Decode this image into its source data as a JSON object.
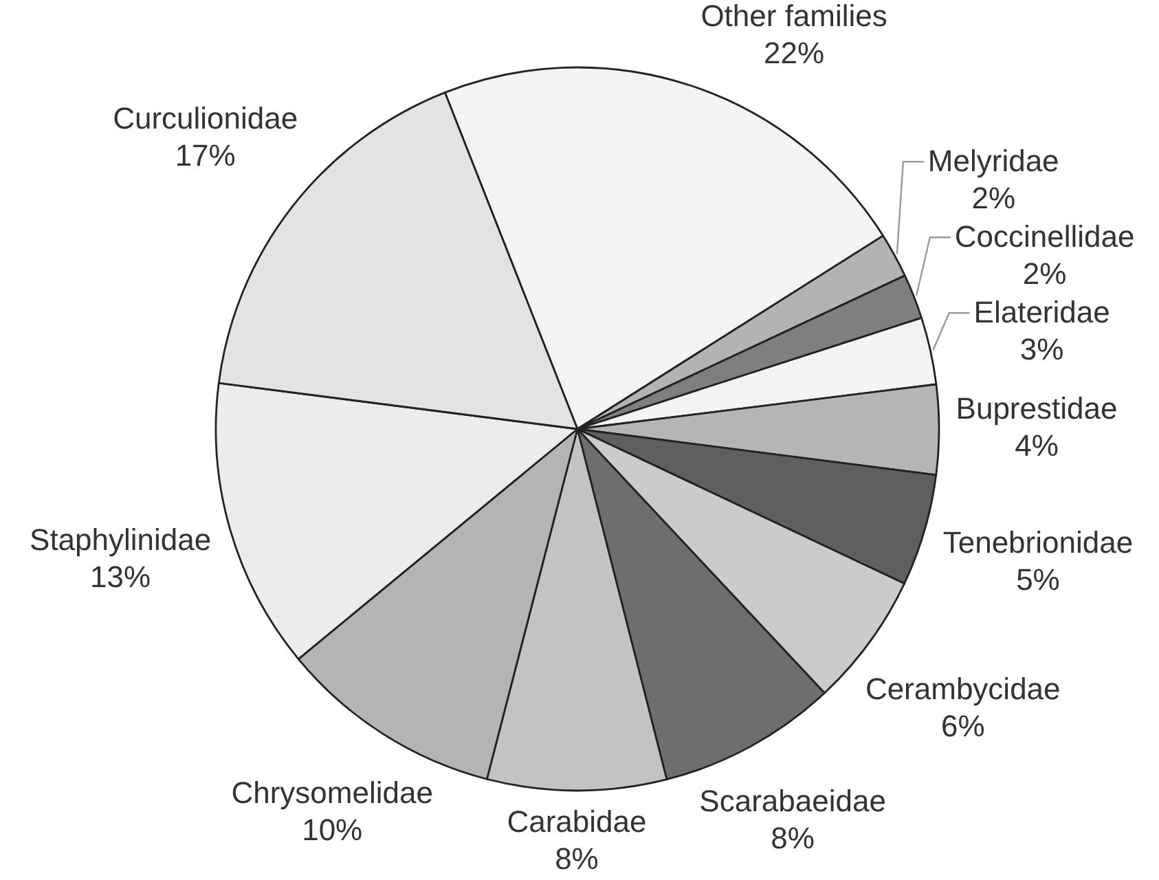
{
  "chart_data": {
    "type": "pie",
    "categories": [
      "Other families",
      "Melyridae",
      "Coccinellidae",
      "Elateridae",
      "Buprestidae",
      "Tenebrionidae",
      "Cerambycidae",
      "Scarabaeidae",
      "Carabidae",
      "Chrysomelidae",
      "Staphylinidae",
      "Curculionidae"
    ],
    "values": [
      22,
      2,
      2,
      3,
      4,
      5,
      6,
      8,
      8,
      10,
      13,
      17
    ],
    "value_labels": [
      "22%",
      "2%",
      "2%",
      "3%",
      "4%",
      "5%",
      "6%",
      "8%",
      "8%",
      "10%",
      "13%",
      "17%"
    ],
    "colors": [
      "#f3f3f3",
      "#b3b3b3",
      "#7f7f7f",
      "#f3f3f3",
      "#b5b5b5",
      "#5f5f5f",
      "#cbcbcb",
      "#6e6e6e",
      "#c3c3c3",
      "#b4b4b4",
      "#ececec",
      "#e3e3e3"
    ]
  }
}
